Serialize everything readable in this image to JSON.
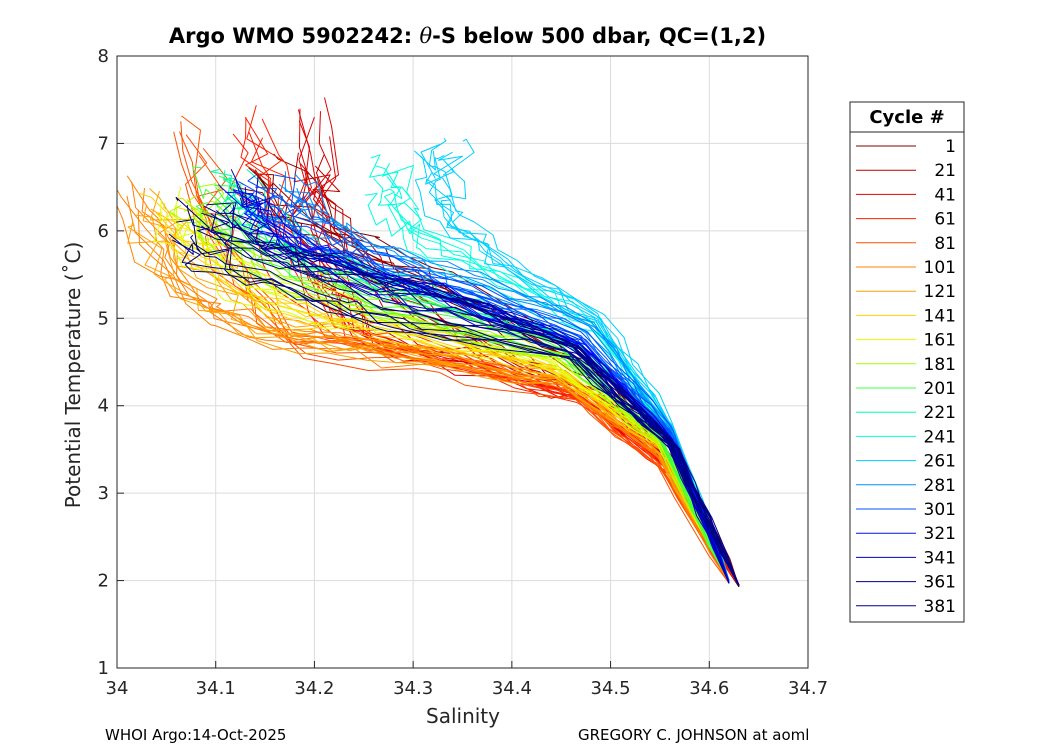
{
  "chart_data": {
    "type": "line",
    "title_prefix": "Argo WMO 5902242: ",
    "title_symbol": "θ",
    "title_suffix": "-S below 500 dbar,  QC=(1,2)",
    "xlabel": "Salinity",
    "ylabel": "Potential Temperature (˚C)",
    "xlim": [
      34.0,
      34.7
    ],
    "ylim": [
      1,
      8
    ],
    "xticks": [
      "34",
      "34.1",
      "34.2",
      "34.3",
      "34.4",
      "34.5",
      "34.6",
      "34.7"
    ],
    "yticks": [
      "1",
      "2",
      "3",
      "4",
      "5",
      "6",
      "7",
      "8"
    ],
    "grid": true,
    "legend_title": "Cycle #",
    "legend_position": "right",
    "series": [
      {
        "name": "1",
        "color": "#800000",
        "points": [
          [
            34.63,
            1.93
          ],
          [
            34.58,
            3.1
          ],
          [
            34.5,
            4.3
          ],
          [
            34.38,
            5.1
          ],
          [
            34.28,
            5.6
          ],
          [
            34.2,
            6.1
          ],
          [
            34.14,
            6.7
          ]
        ]
      },
      {
        "name": "21",
        "color": "#c00000",
        "points": [
          [
            34.63,
            1.95
          ],
          [
            34.57,
            3.2
          ],
          [
            34.49,
            4.1
          ],
          [
            34.38,
            4.6
          ],
          [
            34.28,
            5.2
          ],
          [
            34.22,
            6.0
          ],
          [
            34.19,
            6.7
          ]
        ]
      },
      {
        "name": "41",
        "color": "#e00000",
        "points": [
          [
            34.62,
            1.97
          ],
          [
            34.56,
            3.3
          ],
          [
            34.48,
            4.05
          ],
          [
            34.37,
            4.45
          ],
          [
            34.25,
            4.8
          ],
          [
            34.2,
            5.8
          ],
          [
            34.2,
            7.3
          ]
        ]
      },
      {
        "name": "61",
        "color": "#ff2000",
        "points": [
          [
            34.63,
            1.95
          ],
          [
            34.56,
            3.25
          ],
          [
            34.47,
            4.1
          ],
          [
            34.34,
            4.55
          ],
          [
            34.22,
            4.9
          ],
          [
            34.15,
            6.2
          ],
          [
            34.13,
            7.3
          ]
        ]
      },
      {
        "name": "81",
        "color": "#ff5000",
        "points": [
          [
            34.62,
            1.97
          ],
          [
            34.55,
            3.3
          ],
          [
            34.46,
            4.15
          ],
          [
            34.32,
            4.5
          ],
          [
            34.18,
            4.7
          ],
          [
            34.1,
            5.9
          ],
          [
            34.07,
            7.1
          ]
        ]
      },
      {
        "name": "101",
        "color": "#ff8000",
        "points": [
          [
            34.62,
            1.98
          ],
          [
            34.55,
            3.4
          ],
          [
            34.45,
            4.25
          ],
          [
            34.3,
            4.55
          ],
          [
            34.15,
            4.75
          ],
          [
            34.06,
            5.3
          ],
          [
            34.01,
            6.4
          ]
        ]
      },
      {
        "name": "121",
        "color": "#ffa000",
        "points": [
          [
            34.62,
            2.0
          ],
          [
            34.55,
            3.5
          ],
          [
            34.45,
            4.35
          ],
          [
            34.3,
            4.6
          ],
          [
            34.15,
            4.9
          ],
          [
            34.06,
            5.6
          ],
          [
            34.03,
            6.3
          ]
        ]
      },
      {
        "name": "141",
        "color": "#ffd000",
        "points": [
          [
            34.62,
            2.0
          ],
          [
            34.55,
            3.55
          ],
          [
            34.44,
            4.4
          ],
          [
            34.3,
            4.75
          ],
          [
            34.15,
            5.1
          ],
          [
            34.08,
            5.7
          ],
          [
            34.04,
            6.2
          ]
        ]
      },
      {
        "name": "161",
        "color": "#e0ff00",
        "points": [
          [
            34.62,
            2.0
          ],
          [
            34.55,
            3.6
          ],
          [
            34.44,
            4.5
          ],
          [
            34.3,
            4.9
          ],
          [
            34.15,
            5.3
          ],
          [
            34.08,
            5.8
          ],
          [
            34.06,
            6.3
          ]
        ]
      },
      {
        "name": "181",
        "color": "#a0ff00",
        "points": [
          [
            34.62,
            2.0
          ],
          [
            34.55,
            3.6
          ],
          [
            34.45,
            4.6
          ],
          [
            34.3,
            5.0
          ],
          [
            34.16,
            5.5
          ],
          [
            34.1,
            6.0
          ],
          [
            34.08,
            6.4
          ]
        ]
      },
      {
        "name": "201",
        "color": "#40ff40",
        "points": [
          [
            34.62,
            2.0
          ],
          [
            34.55,
            3.65
          ],
          [
            34.45,
            4.65
          ],
          [
            34.32,
            5.1
          ],
          [
            34.18,
            5.6
          ],
          [
            34.12,
            6.1
          ],
          [
            34.1,
            6.5
          ]
        ]
      },
      {
        "name": "221",
        "color": "#00ffa0",
        "points": [
          [
            34.62,
            2.0
          ],
          [
            34.56,
            3.7
          ],
          [
            34.46,
            4.75
          ],
          [
            34.34,
            5.2
          ],
          [
            34.2,
            5.7
          ],
          [
            34.14,
            6.2
          ],
          [
            34.12,
            6.6
          ]
        ]
      },
      {
        "name": "241",
        "color": "#00ffe0",
        "points": [
          [
            34.62,
            2.0
          ],
          [
            34.56,
            3.75
          ],
          [
            34.48,
            4.9
          ],
          [
            34.38,
            5.45
          ],
          [
            34.3,
            5.9
          ],
          [
            34.28,
            6.3
          ],
          [
            34.26,
            6.6
          ]
        ]
      },
      {
        "name": "261",
        "color": "#00d0ff",
        "points": [
          [
            34.62,
            2.0
          ],
          [
            34.56,
            3.8
          ],
          [
            34.49,
            5.0
          ],
          [
            34.4,
            5.6
          ],
          [
            34.34,
            6.1
          ],
          [
            34.33,
            6.6
          ],
          [
            34.34,
            6.9
          ]
        ]
      },
      {
        "name": "281",
        "color": "#0090ff",
        "points": [
          [
            34.62,
            2.0
          ],
          [
            34.56,
            3.75
          ],
          [
            34.48,
            4.9
          ],
          [
            34.38,
            5.35
          ],
          [
            34.28,
            5.7
          ],
          [
            34.2,
            6.1
          ],
          [
            34.17,
            6.5
          ]
        ]
      },
      {
        "name": "301",
        "color": "#0050ff",
        "points": [
          [
            34.62,
            2.0
          ],
          [
            34.56,
            3.7
          ],
          [
            34.47,
            4.8
          ],
          [
            34.36,
            5.3
          ],
          [
            34.26,
            5.65
          ],
          [
            34.18,
            6.05
          ],
          [
            34.14,
            6.5
          ]
        ]
      },
      {
        "name": "321",
        "color": "#0010ff",
        "points": [
          [
            34.62,
            1.98
          ],
          [
            34.56,
            3.65
          ],
          [
            34.47,
            4.75
          ],
          [
            34.35,
            5.25
          ],
          [
            34.25,
            5.6
          ],
          [
            34.17,
            6.0
          ],
          [
            34.12,
            6.6
          ]
        ]
      },
      {
        "name": "341",
        "color": "#0000c0",
        "points": [
          [
            34.62,
            1.97
          ],
          [
            34.56,
            3.6
          ],
          [
            34.46,
            4.7
          ],
          [
            34.34,
            5.2
          ],
          [
            34.24,
            5.55
          ],
          [
            34.16,
            5.95
          ],
          [
            34.13,
            6.5
          ]
        ]
      },
      {
        "name": "361",
        "color": "#000080",
        "points": [
          [
            34.63,
            1.95
          ],
          [
            34.56,
            3.55
          ],
          [
            34.46,
            4.6
          ],
          [
            34.3,
            4.95
          ],
          [
            34.2,
            5.3
          ],
          [
            34.1,
            5.7
          ],
          [
            34.06,
            6.1
          ]
        ]
      },
      {
        "name": "381",
        "color": "#00008b",
        "points": [
          [
            34.63,
            1.94
          ],
          [
            34.57,
            3.5
          ],
          [
            34.47,
            4.65
          ],
          [
            34.35,
            5.2
          ],
          [
            34.25,
            5.5
          ],
          [
            34.15,
            5.8
          ],
          [
            34.1,
            6.2
          ]
        ]
      }
    ]
  },
  "footer": {
    "left": "WHOI Argo:14-Oct-2025",
    "right": "GREGORY C. JOHNSON at aoml"
  }
}
